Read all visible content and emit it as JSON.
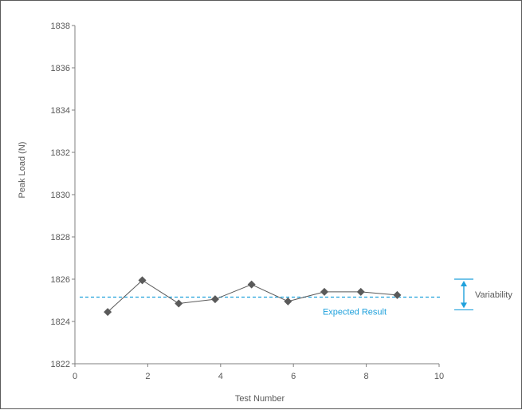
{
  "chart_data": {
    "type": "line",
    "xlabel": "Test Number",
    "ylabel": "Peak Load (N)",
    "xlim": [
      0,
      10
    ],
    "ylim": [
      1822,
      1838
    ],
    "x_ticks": [
      "0",
      "2",
      "4",
      "6",
      "8",
      "10"
    ],
    "y_ticks": [
      "1822",
      "1824",
      "1826",
      "1828",
      "1830",
      "1832",
      "1834",
      "1836",
      "1838"
    ],
    "grid": false,
    "series": [
      {
        "x": [
          0.9,
          1.85,
          2.85,
          3.85,
          4.85,
          5.85,
          6.85,
          7.85,
          8.85
        ],
        "y": [
          1824.45,
          1825.95,
          1824.85,
          1825.05,
          1825.75,
          1824.95,
          1825.4,
          1825.4,
          1825.25
        ],
        "color": "#5a5a5a",
        "marker": "diamond"
      }
    ],
    "reference_line": {
      "label": "Expected Result",
      "y": 1825.15,
      "color": "#1fa1dc",
      "style": "dashed"
    },
    "variability": {
      "label": "Variability",
      "y_low": 1824.55,
      "y_high": 1826.0,
      "color": "#1fa1dc"
    }
  }
}
